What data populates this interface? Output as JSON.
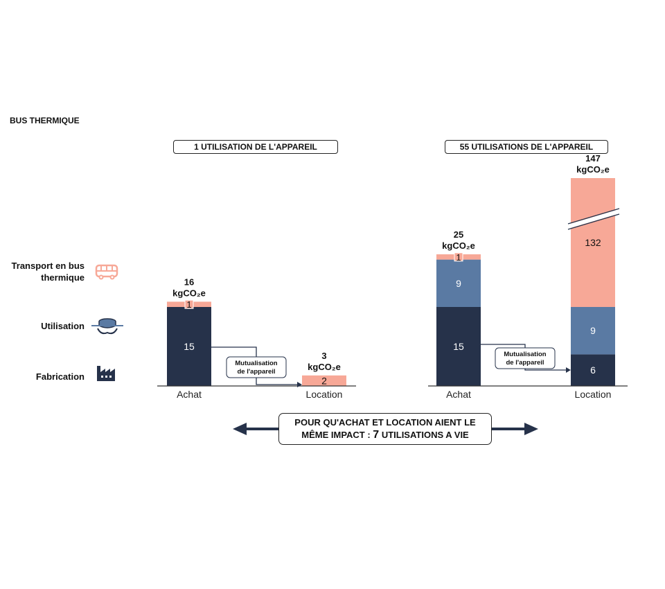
{
  "title": "BUS THERMIQUE",
  "panels": [
    {
      "label": "1 UTILISATION DE L'APPAREIL"
    },
    {
      "label": "55 UTILISATIONS DE L'APPAREIL"
    }
  ],
  "legend": [
    {
      "label": "Transport en bus thermique",
      "color": "#f7a897",
      "icon": "bus-icon"
    },
    {
      "label": "Utilisation",
      "color": "#5a7aa3",
      "icon": "device-icon"
    },
    {
      "label": "Fabrication",
      "color": "#26324a",
      "icon": "factory-icon"
    }
  ],
  "mutualisation_label": "Mutualisation de l'appareil",
  "bottom_note": {
    "text_line1": "POUR QU'ACHAT ET LOCATION AIENT LE",
    "text_line2_prefix": "MÊME IMPACT : ",
    "text_line2_number": "7",
    "text_line2_suffix": " UTILISATIONS A VIE"
  },
  "colors": {
    "fabrication": "#26324a",
    "utilisation": "#5a7aa3",
    "transport": "#f7a897",
    "axis": "#333333"
  },
  "chart_data": {
    "type": "bar",
    "stacked": true,
    "unit": "kgCO₂e",
    "categories": [
      "Achat",
      "Location",
      "Achat",
      "Location"
    ],
    "groups": [
      "1 UTILISATION DE L'APPAREIL",
      "1 UTILISATION DE L'APPAREIL",
      "55 UTILISATIONS DE L'APPAREIL",
      "55 UTILISATIONS DE L'APPAREIL"
    ],
    "series": [
      {
        "name": "Fabrication",
        "values": [
          15,
          0,
          15,
          6
        ]
      },
      {
        "name": "Utilisation",
        "values": [
          0,
          0,
          9,
          9
        ]
      },
      {
        "name": "Transport en bus thermique",
        "values": [
          1,
          2,
          1,
          132
        ]
      }
    ],
    "totals": [
      "16",
      "3",
      "25",
      "147"
    ],
    "broken_axis": [
      false,
      false,
      false,
      true
    ]
  }
}
